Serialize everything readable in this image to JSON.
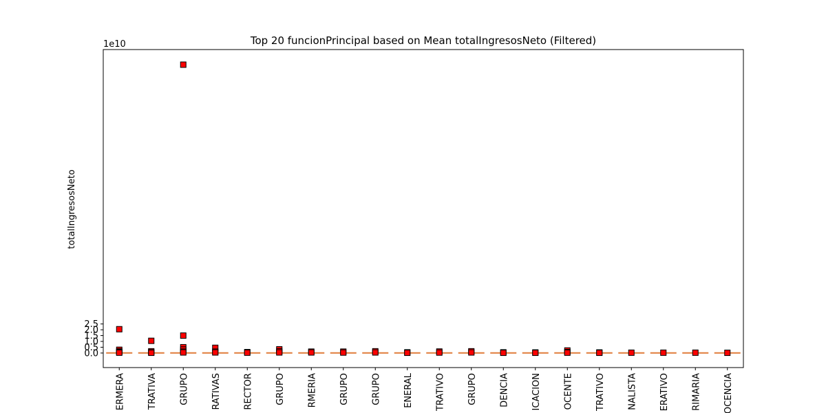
{
  "chart_data": {
    "type": "box",
    "title": "Top 20 funcionPrincipal based on Mean totalIngresosNeto (Filtered)",
    "ylabel": "totalIngresosNeto",
    "y_offset_label": "1e10",
    "ylim": [
      -1.25,
      26.1
    ],
    "y_ticks": [
      0.0,
      0.5,
      1.0,
      1.5,
      2.0,
      2.5
    ],
    "y_tick_labels": [
      "0.0",
      "0.5",
      "1.0",
      "1.5",
      "2.0",
      "2.5"
    ],
    "categories": [
      "ERMERA",
      "TRATIVA",
      "GRUPO",
      "RATIVAS",
      "RECTOR",
      "GRUPO",
      "RMERIA",
      "GRUPO",
      "GRUPO",
      "ENERAL",
      "TRATIVO",
      "GRUPO",
      "DENCIA",
      "ICACION",
      "OCENTE",
      "TRATIVO",
      "NALISTA",
      "ERATIVO",
      "RIMARIA",
      "OCENCIA"
    ],
    "medians": [
      0.01,
      0.01,
      0.01,
      0.01,
      0.01,
      0.01,
      0.01,
      0.01,
      0.01,
      0.01,
      0.01,
      0.01,
      0.01,
      0.01,
      0.01,
      0.01,
      0.01,
      0.01,
      0.01,
      0.01
    ],
    "outliers": [
      [
        2.05,
        0.28,
        0.15,
        0.08,
        0.03
      ],
      [
        1.05,
        0.15,
        0.06,
        0.02
      ],
      [
        24.8,
        1.5,
        0.5,
        0.3,
        0.12,
        0.05
      ],
      [
        0.45,
        0.12,
        0.05
      ],
      [
        0.08,
        0.03
      ],
      [
        0.32,
        0.15,
        0.05
      ],
      [
        0.12,
        0.05
      ],
      [
        0.12,
        0.04
      ],
      [
        0.15,
        0.05
      ],
      [
        0.06,
        0.02
      ],
      [
        0.13,
        0.04
      ],
      [
        0.15,
        0.05
      ],
      [
        0.06,
        0.02
      ],
      [
        0.05,
        0.02
      ],
      [
        0.22,
        0.08,
        0.03
      ],
      [
        0.05,
        0.02
      ],
      [
        0.03
      ],
      [
        0.03
      ],
      [
        0.03
      ],
      [
        0.02
      ]
    ],
    "colors": {
      "outlier_fill": "#ff0000",
      "median": "#e07b39",
      "frame": "#000000"
    }
  }
}
